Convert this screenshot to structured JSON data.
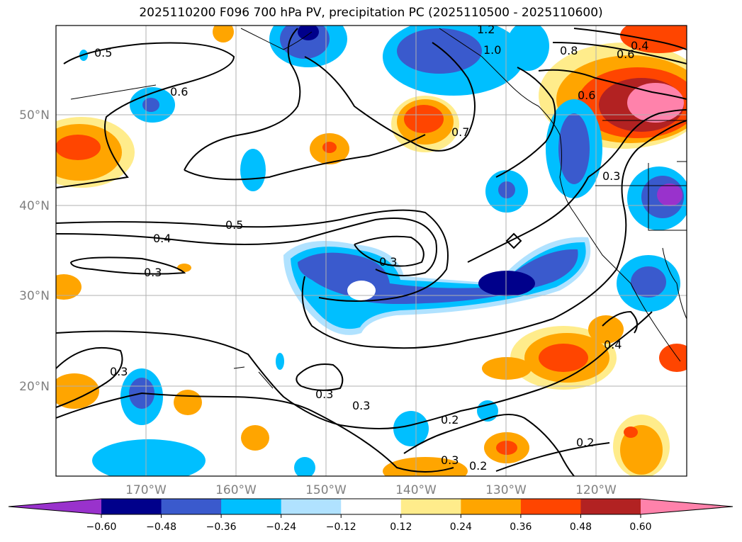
{
  "title": "2025110200 F096 700 hPa PV, precipitation PC (2025110500 - 2025110600)",
  "lon_labels": [
    "170°W",
    "160°W",
    "150°W",
    "140°W",
    "130°W",
    "120°W"
  ],
  "lat_labels": [
    "50°N",
    "40°N",
    "30°N",
    "20°N"
  ],
  "colorbar": {
    "ticks": [
      "−0.60",
      "−0.48",
      "−0.36",
      "−0.24",
      "−0.12",
      "0.12",
      "0.24",
      "0.36",
      "0.48",
      "0.60"
    ],
    "colors": [
      "#9932cc",
      "#00008b",
      "#3a5acd",
      "#00bfff",
      "#b0e2ff",
      "#ffffff",
      "#ffec8b",
      "#ffa500",
      "#ff4500",
      "#b22222",
      "#ff82ab"
    ]
  },
  "contour_labels": [
    "0.5",
    "0.6",
    "0.7",
    "0.8",
    "0.6",
    "0.5",
    "0.4",
    "0.3",
    "0.3",
    "0.3",
    "0.3",
    "0.3",
    "0.2",
    "0.2",
    "0.2",
    "0.3",
    "0.4",
    "1.2",
    "1.0",
    "0.6",
    "0.4",
    "0.3"
  ]
}
